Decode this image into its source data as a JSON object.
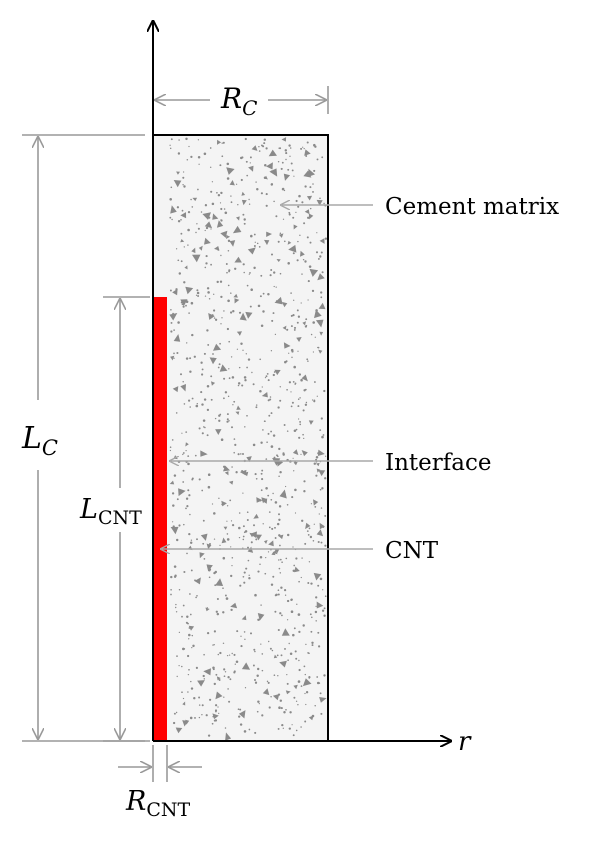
{
  "labels": {
    "cement_matrix": "Cement matrix",
    "interface": "Interface",
    "cnt": "CNT",
    "r_axis": "r"
  },
  "dimensions": {
    "rc": {
      "symbol": "R",
      "sub": "C"
    },
    "lc": {
      "symbol": "L",
      "sub": "C"
    },
    "lcnt": {
      "symbol": "L",
      "sub": "CNT"
    },
    "rcnt": {
      "symbol": "R",
      "sub": "CNT"
    }
  },
  "colors": {
    "cnt_fill": "#ff0000",
    "matrix_fill": "#f4f4f4",
    "speckle": "#8a8a8a",
    "dimension_line": "#999999",
    "leader_line": "#b3b3b3",
    "outline": "#000000"
  }
}
